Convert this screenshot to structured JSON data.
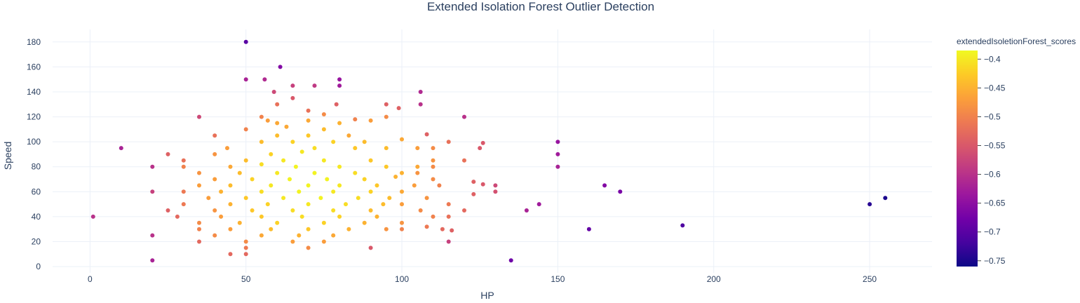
{
  "chart_data": {
    "type": "scatter",
    "title": "Extended Isolation Forest Outlier Detection",
    "xlabel": "HP",
    "ylabel": "Speed",
    "xlim": [
      -12,
      270
    ],
    "ylim": [
      -5,
      190
    ],
    "x_ticks": [
      0,
      50,
      100,
      150,
      200,
      250
    ],
    "y_ticks": [
      0,
      20,
      40,
      60,
      80,
      100,
      120,
      140,
      160,
      180
    ],
    "grid": true,
    "colorbar": {
      "title": "extendedIsoletionForest_scores",
      "min": -0.76,
      "max": -0.385,
      "ticks": [
        -0.4,
        -0.45,
        -0.5,
        -0.55,
        -0.6,
        -0.65,
        -0.7,
        -0.75
      ],
      "colorscale": [
        "#0d0887",
        "#46039f",
        "#7201a8",
        "#9c179e",
        "#bd3786",
        "#d8576b",
        "#ed7953",
        "#fb9f3a",
        "#fdca26",
        "#f0f921"
      ]
    },
    "points": [
      [
        50,
        180,
        -0.7
      ],
      [
        61,
        160,
        -0.66
      ],
      [
        50,
        150,
        -0.62
      ],
      [
        56,
        150,
        -0.61
      ],
      [
        80,
        150,
        -0.64
      ],
      [
        80,
        145,
        -0.63
      ],
      [
        65,
        145,
        -0.58
      ],
      [
        72,
        145,
        -0.59
      ],
      [
        59,
        140,
        -0.57
      ],
      [
        106,
        140,
        -0.61
      ],
      [
        65,
        135,
        -0.55
      ],
      [
        79,
        130,
        -0.54
      ],
      [
        60,
        130,
        -0.52
      ],
      [
        95,
        130,
        -0.54
      ],
      [
        106,
        130,
        -0.6
      ],
      [
        99,
        127,
        -0.54
      ],
      [
        70,
        125,
        -0.52
      ],
      [
        75,
        122,
        -0.49
      ],
      [
        35,
        120,
        -0.57
      ],
      [
        55,
        120,
        -0.5
      ],
      [
        120,
        120,
        -0.6
      ],
      [
        57,
        117,
        -0.47
      ],
      [
        70,
        117,
        -0.46
      ],
      [
        85,
        118,
        -0.5
      ],
      [
        90,
        117,
        -0.47
      ],
      [
        60,
        115,
        -0.46
      ],
      [
        80,
        115,
        -0.45
      ],
      [
        95,
        120,
        -0.49
      ],
      [
        50,
        110,
        -0.5
      ],
      [
        63,
        112,
        -0.46
      ],
      [
        75,
        110,
        -0.44
      ],
      [
        60,
        105,
        -0.44
      ],
      [
        40,
        105,
        -0.52
      ],
      [
        83,
        105,
        -0.46
      ],
      [
        108,
        106,
        -0.54
      ],
      [
        70,
        105,
        -0.43
      ],
      [
        55,
        100,
        -0.44
      ],
      [
        65,
        100,
        -0.42
      ],
      [
        78,
        100,
        -0.42
      ],
      [
        88,
        100,
        -0.44
      ],
      [
        100,
        102,
        -0.46
      ],
      [
        115,
        100,
        -0.52
      ],
      [
        150,
        100,
        -0.64
      ],
      [
        10,
        95,
        -0.62
      ],
      [
        44,
        95,
        -0.47
      ],
      [
        126,
        99,
        -0.55
      ],
      [
        40,
        90,
        -0.48
      ],
      [
        25,
        90,
        -0.54
      ],
      [
        58,
        90,
        -0.42
      ],
      [
        68,
        92,
        -0.4
      ],
      [
        72,
        95,
        -0.41
      ],
      [
        85,
        95,
        -0.43
      ],
      [
        95,
        95,
        -0.44
      ],
      [
        105,
        95,
        -0.47
      ],
      [
        110,
        95,
        -0.49
      ],
      [
        125,
        95,
        -0.55
      ],
      [
        150,
        90,
        -0.63
      ],
      [
        30,
        85,
        -0.52
      ],
      [
        50,
        85,
        -0.44
      ],
      [
        62,
        85,
        -0.4
      ],
      [
        75,
        85,
        -0.4
      ],
      [
        90,
        85,
        -0.43
      ],
      [
        110,
        85,
        -0.48
      ],
      [
        120,
        85,
        -0.52
      ],
      [
        20,
        80,
        -0.6
      ],
      [
        30,
        80,
        -0.5
      ],
      [
        45,
        80,
        -0.46
      ],
      [
        55,
        82,
        -0.41
      ],
      [
        66,
        80,
        -0.39
      ],
      [
        80,
        80,
        -0.4
      ],
      [
        95,
        80,
        -0.43
      ],
      [
        105,
        80,
        -0.46
      ],
      [
        110,
        80,
        -0.49
      ],
      [
        150,
        80,
        -0.62
      ],
      [
        35,
        75,
        -0.48
      ],
      [
        48,
        75,
        -0.44
      ],
      [
        60,
        75,
        -0.4
      ],
      [
        72,
        75,
        -0.39
      ],
      [
        85,
        75,
        -0.41
      ],
      [
        100,
        75,
        -0.45
      ],
      [
        105,
        75,
        -0.48
      ],
      [
        40,
        70,
        -0.47
      ],
      [
        52,
        70,
        -0.42
      ],
      [
        64,
        70,
        -0.39
      ],
      [
        76,
        70,
        -0.39
      ],
      [
        88,
        70,
        -0.42
      ],
      [
        98,
        72,
        -0.45
      ],
      [
        110,
        70,
        -0.49
      ],
      [
        123,
        68,
        -0.54
      ],
      [
        126,
        66,
        -0.55
      ],
      [
        165,
        65,
        -0.66
      ],
      [
        130,
        65,
        -0.57
      ],
      [
        35,
        65,
        -0.47
      ],
      [
        45,
        65,
        -0.44
      ],
      [
        58,
        65,
        -0.4
      ],
      [
        70,
        65,
        -0.39
      ],
      [
        80,
        65,
        -0.4
      ],
      [
        92,
        65,
        -0.43
      ],
      [
        104,
        65,
        -0.47
      ],
      [
        112,
        65,
        -0.5
      ],
      [
        20,
        60,
        -0.58
      ],
      [
        30,
        60,
        -0.51
      ],
      [
        42,
        60,
        -0.45
      ],
      [
        55,
        60,
        -0.41
      ],
      [
        67,
        60,
        -0.39
      ],
      [
        78,
        60,
        -0.4
      ],
      [
        90,
        60,
        -0.42
      ],
      [
        100,
        60,
        -0.46
      ],
      [
        123,
        58,
        -0.54
      ],
      [
        130,
        60,
        -0.56
      ],
      [
        170,
        60,
        -0.67
      ],
      [
        255,
        55,
        -0.75
      ],
      [
        250,
        50,
        -0.74
      ],
      [
        38,
        55,
        -0.47
      ],
      [
        50,
        55,
        -0.43
      ],
      [
        62,
        55,
        -0.4
      ],
      [
        74,
        55,
        -0.39
      ],
      [
        86,
        55,
        -0.41
      ],
      [
        96,
        55,
        -0.44
      ],
      [
        108,
        55,
        -0.48
      ],
      [
        30,
        50,
        -0.51
      ],
      [
        45,
        50,
        -0.45
      ],
      [
        57,
        50,
        -0.42
      ],
      [
        70,
        50,
        -0.4
      ],
      [
        82,
        50,
        -0.41
      ],
      [
        94,
        50,
        -0.44
      ],
      [
        100,
        50,
        -0.47
      ],
      [
        115,
        50,
        -0.51
      ],
      [
        144,
        50,
        -0.63
      ],
      [
        25,
        45,
        -0.54
      ],
      [
        40,
        45,
        -0.48
      ],
      [
        52,
        45,
        -0.43
      ],
      [
        65,
        45,
        -0.41
      ],
      [
        78,
        45,
        -0.41
      ],
      [
        90,
        45,
        -0.44
      ],
      [
        106,
        45,
        -0.49
      ],
      [
        120,
        45,
        -0.53
      ],
      [
        140,
        45,
        -0.62
      ],
      [
        1,
        40,
        -0.6
      ],
      [
        28,
        40,
        -0.53
      ],
      [
        42,
        40,
        -0.47
      ],
      [
        55,
        40,
        -0.43
      ],
      [
        68,
        40,
        -0.41
      ],
      [
        80,
        40,
        -0.42
      ],
      [
        92,
        40,
        -0.45
      ],
      [
        110,
        40,
        -0.5
      ],
      [
        115,
        40,
        -0.52
      ],
      [
        35,
        35,
        -0.49
      ],
      [
        48,
        35,
        -0.45
      ],
      [
        60,
        35,
        -0.42
      ],
      [
        75,
        35,
        -0.42
      ],
      [
        88,
        35,
        -0.45
      ],
      [
        100,
        35,
        -0.48
      ],
      [
        190,
        33,
        -0.71
      ],
      [
        35,
        30,
        -0.5
      ],
      [
        45,
        30,
        -0.47
      ],
      [
        58,
        30,
        -0.44
      ],
      [
        70,
        30,
        -0.43
      ],
      [
        83,
        30,
        -0.45
      ],
      [
        95,
        30,
        -0.48
      ],
      [
        100,
        30,
        -0.5
      ],
      [
        108,
        32,
        -0.51
      ],
      [
        113,
        30,
        -0.53
      ],
      [
        116,
        29,
        -0.54
      ],
      [
        160,
        30,
        -0.69
      ],
      [
        20,
        25,
        -0.6
      ],
      [
        40,
        25,
        -0.49
      ],
      [
        55,
        25,
        -0.46
      ],
      [
        67,
        25,
        -0.45
      ],
      [
        78,
        25,
        -0.46
      ],
      [
        35,
        20,
        -0.53
      ],
      [
        50,
        20,
        -0.49
      ],
      [
        65,
        20,
        -0.47
      ],
      [
        75,
        20,
        -0.47
      ],
      [
        115,
        20,
        -0.58
      ],
      [
        50,
        15,
        -0.51
      ],
      [
        70,
        15,
        -0.49
      ],
      [
        90,
        15,
        -0.55
      ],
      [
        45,
        10,
        -0.53
      ],
      [
        50,
        10,
        -0.53
      ],
      [
        20,
        5,
        -0.62
      ],
      [
        135,
        5,
        -0.68
      ]
    ]
  }
}
